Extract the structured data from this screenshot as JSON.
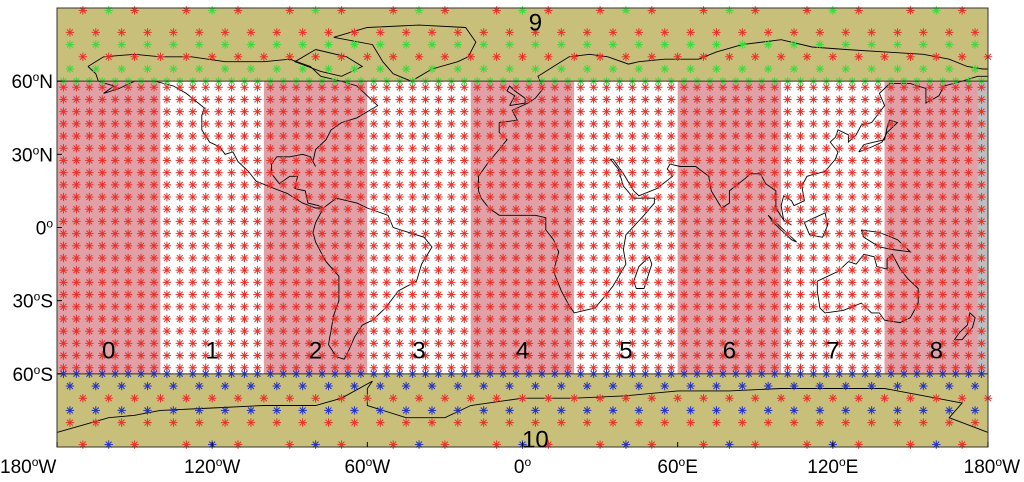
{
  "map": {
    "projection": "equirectangular",
    "extent": {
      "lon": [
        -180,
        180
      ],
      "lat": [
        -90,
        90
      ]
    },
    "colors": {
      "polar_band": "#C8C07A",
      "zone_shaded": "#E0A0A6",
      "zone_unshaded": "#FFFFFF",
      "edge_gray": "#BEBEBE",
      "marker_red": "#E8312B",
      "marker_green": "#3ED83E",
      "marker_blue": "#2432C8",
      "coastline": "#000000",
      "axis_lines": "#333333"
    }
  },
  "chart_data": {
    "type": "scatter",
    "title": "",
    "xlabel": "",
    "ylabel": "",
    "xlim": [
      -180,
      180
    ],
    "ylim": [
      -90,
      90
    ],
    "x_ticks": [
      {
        "value": -180,
        "deg": "180",
        "sup": "o",
        "hemi": "W"
      },
      {
        "value": -120,
        "deg": "120",
        "sup": "o",
        "hemi": "W"
      },
      {
        "value": -60,
        "deg": "60",
        "sup": "o",
        "hemi": "W"
      },
      {
        "value": 0,
        "deg": "0",
        "sup": "o",
        "hemi": ""
      },
      {
        "value": 60,
        "deg": "60",
        "sup": "o",
        "hemi": "E"
      },
      {
        "value": 120,
        "deg": "120",
        "sup": "o",
        "hemi": "E"
      },
      {
        "value": 180,
        "deg": "180",
        "sup": "o",
        "hemi": "W"
      }
    ],
    "y_ticks": [
      {
        "value": 60,
        "deg": "60",
        "sup": "o",
        "hemi": "N"
      },
      {
        "value": 30,
        "deg": "30",
        "sup": "o",
        "hemi": "N"
      },
      {
        "value": 0,
        "deg": "0",
        "sup": "o",
        "hemi": ""
      },
      {
        "value": -30,
        "deg": "30",
        "sup": "o",
        "hemi": "S"
      },
      {
        "value": -60,
        "deg": "60",
        "sup": "o",
        "hemi": "S"
      }
    ],
    "zones": [
      {
        "label": "0",
        "lon_range": [
          -180,
          -140
        ],
        "lat_range": [
          -60,
          60
        ],
        "shaded": true
      },
      {
        "label": "1",
        "lon_range": [
          -140,
          -100
        ],
        "lat_range": [
          -60,
          60
        ],
        "shaded": false
      },
      {
        "label": "2",
        "lon_range": [
          -100,
          -60
        ],
        "lat_range": [
          -60,
          60
        ],
        "shaded": true
      },
      {
        "label": "3",
        "lon_range": [
          -60,
          -20
        ],
        "lat_range": [
          -60,
          60
        ],
        "shaded": false
      },
      {
        "label": "4",
        "lon_range": [
          -20,
          20
        ],
        "lat_range": [
          -60,
          60
        ],
        "shaded": true
      },
      {
        "label": "5",
        "lon_range": [
          20,
          60
        ],
        "lat_range": [
          -60,
          60
        ],
        "shaded": false
      },
      {
        "label": "6",
        "lon_range": [
          60,
          100
        ],
        "lat_range": [
          -60,
          60
        ],
        "shaded": true
      },
      {
        "label": "7",
        "lon_range": [
          100,
          140
        ],
        "lat_range": [
          -60,
          60
        ],
        "shaded": false
      },
      {
        "label": "8",
        "lon_range": [
          140,
          180
        ],
        "lat_range": [
          -60,
          60
        ],
        "shaded": true
      },
      {
        "label": "9",
        "lon_range": [
          -180,
          180
        ],
        "lat_range": [
          60,
          90
        ],
        "shaded": false
      },
      {
        "label": "10",
        "lon_range": [
          -180,
          180
        ],
        "lat_range": [
          -90,
          -60
        ],
        "shaded": false
      }
    ],
    "series": [
      {
        "color_key": "marker_red",
        "marker": "asterisk",
        "grid": "5 x 5 deg, 60S-55N; 10 deg rows to 85 deg"
      },
      {
        "color_key": "marker_green",
        "marker": "asterisk",
        "grid": "polar rows 60N-90N"
      },
      {
        "color_key": "marker_blue",
        "marker": "asterisk",
        "grid": "polar rows 60S-90S"
      }
    ]
  }
}
